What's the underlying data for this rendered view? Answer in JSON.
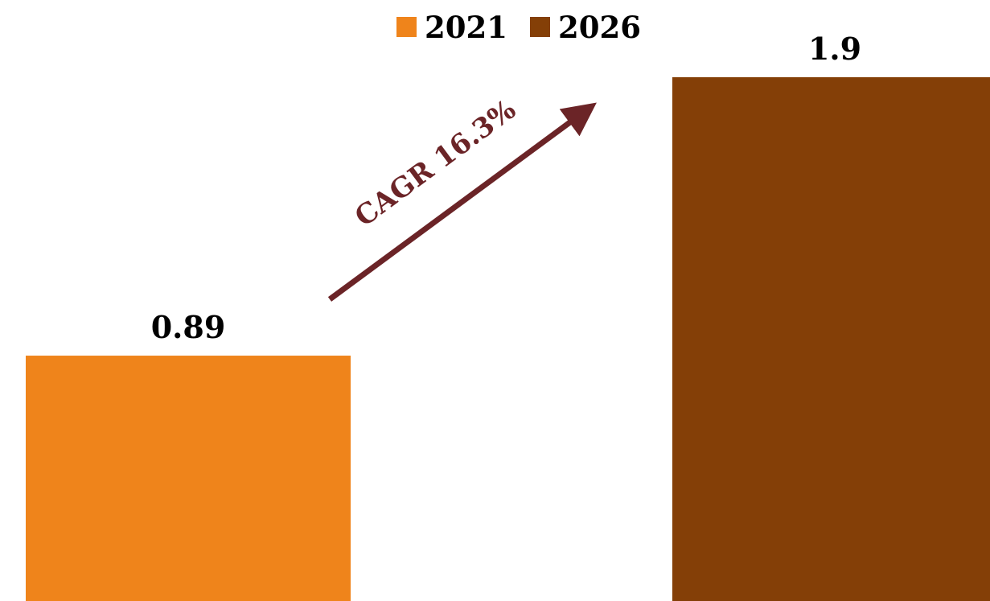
{
  "chart_data": {
    "type": "bar",
    "categories": [
      "2021",
      "2026"
    ],
    "series": [
      {
        "name": "2021",
        "values": [
          0.89,
          null
        ],
        "color": "#EF841B"
      },
      {
        "name": "2026",
        "values": [
          null,
          1.9
        ],
        "color": "#843F07"
      }
    ],
    "data_labels": [
      "0.89",
      "1.9"
    ],
    "ylim": [
      0,
      2.18
    ],
    "legend": {
      "position": "top",
      "items": [
        "2021",
        "2026"
      ]
    },
    "annotation": {
      "text": "CAGR 16.3%",
      "color": "#6B2427"
    },
    "grid": false,
    "title": "",
    "xlabel": "",
    "ylabel": ""
  }
}
